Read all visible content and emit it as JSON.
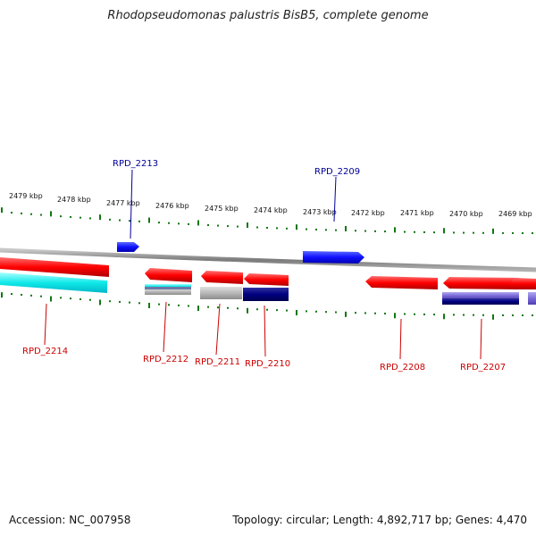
{
  "title": "Rhodopseudomonas palustris BisB5, complete genome",
  "scale_labels": [
    "2479 kbp",
    "2478 kbp",
    "2477 kbp",
    "2476 kbp",
    "2475 kbp",
    "2474 kbp",
    "2473 kbp",
    "2472 kbp",
    "2471 kbp",
    "2470 kbp",
    "2469 kbp"
  ],
  "genes_forward": [
    {
      "id": "RPD_2213",
      "color": "#0000ee"
    },
    {
      "id": "RPD_2209",
      "color": "#0000ee"
    }
  ],
  "genes_reverse": [
    {
      "id": "RPD_2214",
      "color": "#dd0000"
    },
    {
      "id": "RPD_2212",
      "color": "#dd0000"
    },
    {
      "id": "RPD_2211",
      "color": "#dd0000"
    },
    {
      "id": "RPD_2210",
      "color": "#dd0000"
    },
    {
      "id": "RPD_2208",
      "color": "#dd0000"
    },
    {
      "id": "RPD_2207",
      "color": "#dd0000"
    }
  ],
  "footer": {
    "accession": "Accession: NC_007958",
    "stats": "Topology: circular; Length: 4,892,717 bp; Genes: 4,470"
  },
  "colors": {
    "backbone": "#8a8a8a",
    "tick": "#117711",
    "forward_label": "#000099",
    "reverse_label": "#cc0000",
    "cyan_track": "#00e5e5",
    "navy_track": "#000070",
    "grey_track": "#b0b0b0",
    "purple_track": "#7a6ad8"
  }
}
